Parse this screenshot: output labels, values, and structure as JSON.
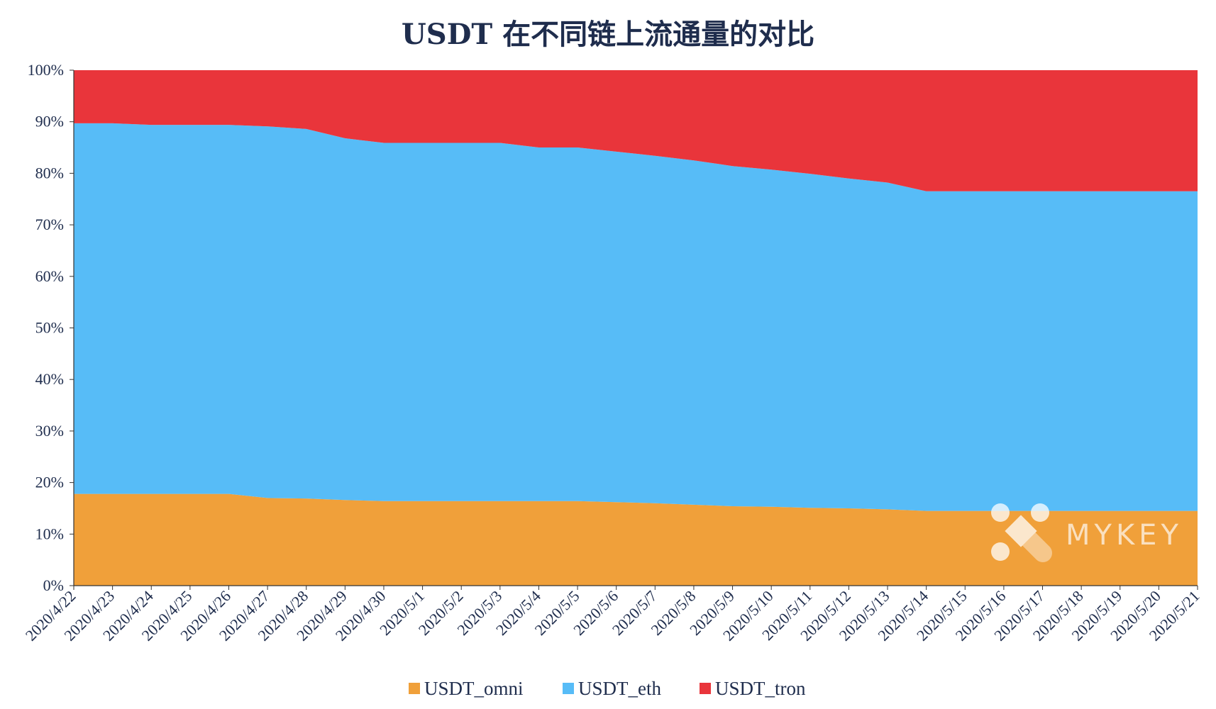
{
  "chart_data": {
    "type": "area",
    "stacked": true,
    "percent": true,
    "title": "USDT 在不同链上流通量的对比",
    "xlabel": "",
    "ylabel": "",
    "ylim": [
      0,
      100
    ],
    "y_ticks": [
      "0%",
      "10%",
      "20%",
      "30%",
      "40%",
      "50%",
      "60%",
      "70%",
      "80%",
      "90%",
      "100%"
    ],
    "categories": [
      "2020/4/22",
      "2020/4/23",
      "2020/4/24",
      "2020/4/25",
      "2020/4/26",
      "2020/4/27",
      "2020/4/28",
      "2020/4/29",
      "2020/4/30",
      "2020/5/1",
      "2020/5/2",
      "2020/5/3",
      "2020/5/4",
      "2020/5/5",
      "2020/5/6",
      "2020/5/7",
      "2020/5/8",
      "2020/5/9",
      "2020/5/10",
      "2020/5/11",
      "2020/5/12",
      "2020/5/13",
      "2020/5/14",
      "2020/5/15",
      "2020/5/16",
      "2020/5/17",
      "2020/5/18",
      "2020/5/19",
      "2020/5/20",
      "2020/5/21"
    ],
    "series": [
      {
        "name": "USDT_omni",
        "color": "#f0a03a",
        "values": [
          17.8,
          17.8,
          17.8,
          17.8,
          17.8,
          17.0,
          16.9,
          16.6,
          16.4,
          16.4,
          16.4,
          16.4,
          16.4,
          16.4,
          16.2,
          16.0,
          15.7,
          15.4,
          15.3,
          15.1,
          15.0,
          14.8,
          14.5,
          14.5,
          14.5,
          14.5,
          14.5,
          14.5,
          14.5,
          14.5
        ]
      },
      {
        "name": "USDT_eth",
        "color": "#57bcf7",
        "values": [
          71.9,
          71.9,
          71.6,
          71.6,
          71.6,
          72.1,
          71.7,
          70.2,
          69.5,
          69.5,
          69.5,
          69.5,
          68.6,
          68.6,
          68.0,
          67.4,
          66.8,
          66.0,
          65.4,
          64.8,
          64.0,
          63.4,
          62.0,
          62.0,
          62.0,
          62.0,
          62.0,
          62.0,
          62.0,
          62.0
        ]
      },
      {
        "name": "USDT_tron",
        "color": "#e9353b",
        "values": [
          10.3,
          10.3,
          10.6,
          10.6,
          10.6,
          10.9,
          11.4,
          13.2,
          14.1,
          14.1,
          14.1,
          14.1,
          15.0,
          15.0,
          15.8,
          16.6,
          17.5,
          18.6,
          19.3,
          20.1,
          21.0,
          21.8,
          23.5,
          23.5,
          23.5,
          23.5,
          23.5,
          23.5,
          23.5,
          23.5
        ]
      }
    ],
    "legend": {
      "position": "bottom"
    },
    "grid": false
  },
  "watermark": {
    "text": "MYKEY"
  }
}
